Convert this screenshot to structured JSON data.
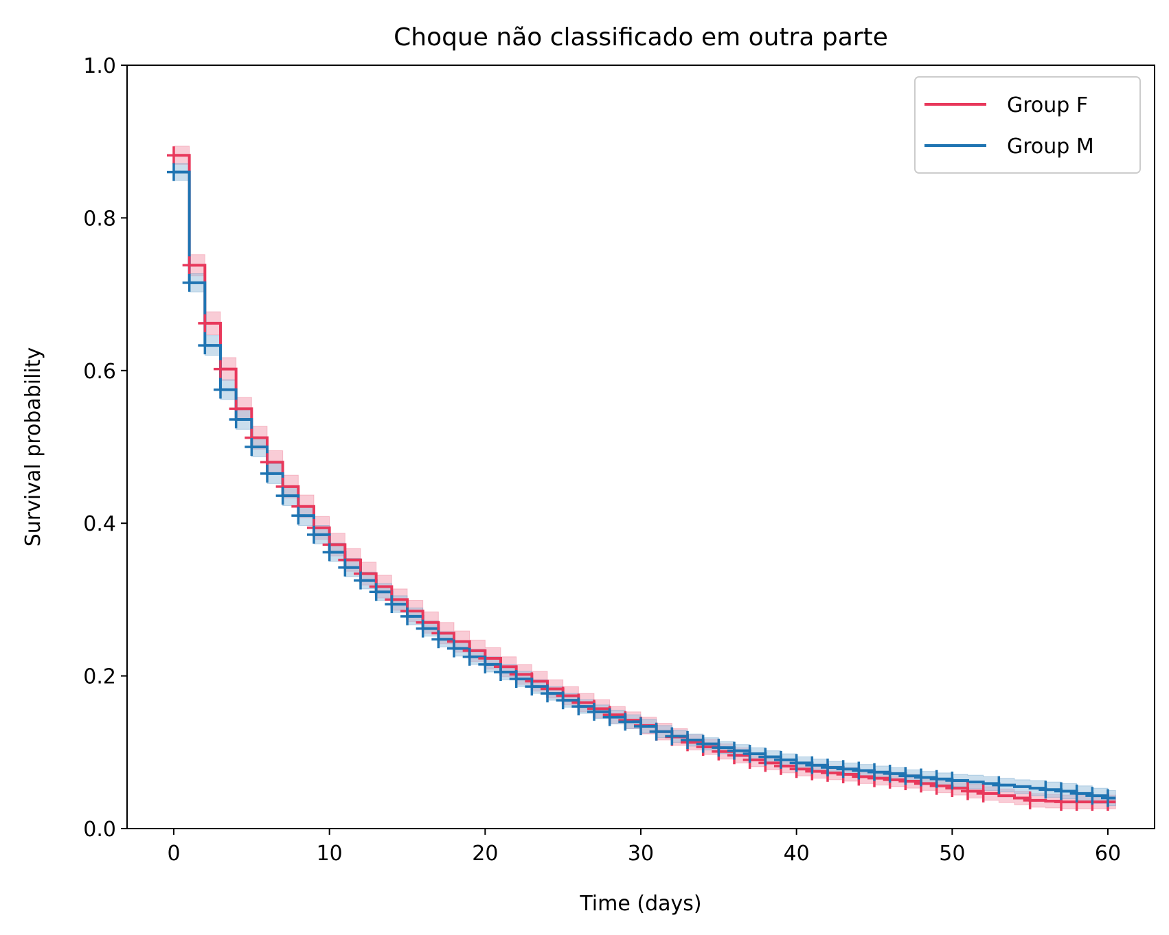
{
  "chart_data": {
    "type": "line",
    "subtype": "kaplan-meier step",
    "title": "Choque não classificado em outra parte",
    "xlabel": "Time (days)",
    "ylabel": "Survival probability",
    "xlim": [
      -3,
      63
    ],
    "ylim": [
      0.0,
      1.0
    ],
    "xticks": [
      0,
      10,
      20,
      30,
      40,
      50,
      60
    ],
    "xtick_labels": [
      "0",
      "10",
      "20",
      "30",
      "40",
      "50",
      "60"
    ],
    "yticks": [
      0.0,
      0.2,
      0.4,
      0.6,
      0.8,
      1.0
    ],
    "ytick_labels": [
      "0.0",
      "0.2",
      "0.4",
      "0.6",
      "0.8",
      "1.0"
    ],
    "grid": false,
    "legend_position": "top-right",
    "series": [
      {
        "name": "Group F",
        "color": "#e8385b",
        "band_color": "#f4a3b5",
        "x": [
          0,
          1,
          2,
          3,
          4,
          5,
          6,
          7,
          8,
          9,
          10,
          11,
          12,
          13,
          14,
          15,
          16,
          17,
          18,
          19,
          20,
          21,
          22,
          23,
          24,
          25,
          26,
          27,
          28,
          29,
          30,
          31,
          32,
          33,
          34,
          35,
          36,
          37,
          38,
          39,
          40,
          41,
          42,
          43,
          44,
          45,
          46,
          47,
          48,
          49,
          50,
          51,
          52,
          53,
          54,
          55,
          56,
          57,
          58,
          59,
          60,
          60.5
        ],
        "y": [
          0.882,
          0.738,
          0.662,
          0.602,
          0.55,
          0.512,
          0.48,
          0.448,
          0.422,
          0.394,
          0.372,
          0.352,
          0.334,
          0.317,
          0.3,
          0.285,
          0.27,
          0.256,
          0.245,
          0.233,
          0.223,
          0.212,
          0.202,
          0.193,
          0.183,
          0.174,
          0.165,
          0.157,
          0.149,
          0.142,
          0.135,
          0.127,
          0.12,
          0.113,
          0.107,
          0.101,
          0.096,
          0.09,
          0.086,
          0.082,
          0.078,
          0.075,
          0.073,
          0.071,
          0.068,
          0.066,
          0.064,
          0.062,
          0.059,
          0.056,
          0.053,
          0.049,
          0.046,
          0.043,
          0.04,
          0.037,
          0.036,
          0.035,
          0.035,
          0.035,
          0.035,
          0.035
        ],
        "ci_lower": [
          0.87,
          0.724,
          0.647,
          0.587,
          0.535,
          0.497,
          0.465,
          0.433,
          0.407,
          0.379,
          0.357,
          0.337,
          0.319,
          0.302,
          0.286,
          0.271,
          0.256,
          0.242,
          0.231,
          0.219,
          0.209,
          0.199,
          0.189,
          0.18,
          0.171,
          0.162,
          0.153,
          0.145,
          0.138,
          0.131,
          0.124,
          0.116,
          0.109,
          0.103,
          0.097,
          0.091,
          0.086,
          0.081,
          0.077,
          0.073,
          0.069,
          0.066,
          0.064,
          0.062,
          0.059,
          0.057,
          0.055,
          0.053,
          0.05,
          0.047,
          0.044,
          0.04,
          0.037,
          0.034,
          0.031,
          0.028,
          0.027,
          0.026,
          0.026,
          0.026,
          0.026,
          0.026
        ],
        "ci_upper": [
          0.894,
          0.752,
          0.677,
          0.617,
          0.565,
          0.527,
          0.495,
          0.463,
          0.437,
          0.409,
          0.387,
          0.367,
          0.349,
          0.332,
          0.314,
          0.299,
          0.284,
          0.27,
          0.259,
          0.247,
          0.237,
          0.225,
          0.215,
          0.206,
          0.195,
          0.186,
          0.177,
          0.169,
          0.16,
          0.153,
          0.146,
          0.138,
          0.131,
          0.123,
          0.117,
          0.111,
          0.106,
          0.099,
          0.095,
          0.091,
          0.087,
          0.084,
          0.082,
          0.08,
          0.077,
          0.075,
          0.073,
          0.071,
          0.068,
          0.065,
          0.062,
          0.058,
          0.055,
          0.052,
          0.049,
          0.046,
          0.045,
          0.044,
          0.044,
          0.044,
          0.044,
          0.044
        ],
        "censor_x": [
          0,
          1,
          2,
          3,
          4,
          5,
          6,
          7,
          8,
          9,
          10,
          11,
          12,
          13,
          14,
          15,
          16,
          17,
          18,
          19,
          20,
          21,
          22,
          23,
          24,
          25,
          26,
          27,
          28,
          29,
          30,
          31,
          32,
          33,
          34,
          35,
          36,
          37,
          38,
          39,
          40,
          41,
          42,
          43,
          44,
          45,
          46,
          47,
          48,
          49,
          50,
          51,
          52,
          55,
          57,
          58,
          59,
          60
        ],
        "censor_y": [
          0.882,
          0.738,
          0.662,
          0.602,
          0.55,
          0.512,
          0.48,
          0.448,
          0.422,
          0.394,
          0.372,
          0.352,
          0.334,
          0.317,
          0.3,
          0.285,
          0.27,
          0.256,
          0.245,
          0.233,
          0.223,
          0.212,
          0.202,
          0.193,
          0.183,
          0.174,
          0.165,
          0.157,
          0.149,
          0.142,
          0.135,
          0.127,
          0.12,
          0.113,
          0.107,
          0.101,
          0.096,
          0.09,
          0.086,
          0.082,
          0.078,
          0.075,
          0.073,
          0.071,
          0.068,
          0.066,
          0.064,
          0.062,
          0.059,
          0.056,
          0.053,
          0.049,
          0.046,
          0.037,
          0.035,
          0.035,
          0.035,
          0.035
        ]
      },
      {
        "name": "Group M",
        "color": "#1f74b2",
        "band_color": "#9fc3df",
        "x": [
          0,
          1,
          2,
          3,
          4,
          5,
          6,
          7,
          8,
          9,
          10,
          11,
          12,
          13,
          14,
          15,
          16,
          17,
          18,
          19,
          20,
          21,
          22,
          23,
          24,
          25,
          26,
          27,
          28,
          29,
          30,
          31,
          32,
          33,
          34,
          35,
          36,
          37,
          38,
          39,
          40,
          41,
          42,
          43,
          44,
          45,
          46,
          47,
          48,
          49,
          50,
          51,
          52,
          53,
          54,
          55,
          56,
          57,
          58,
          59,
          60,
          60.5
        ],
        "y": [
          0.86,
          0.715,
          0.633,
          0.575,
          0.536,
          0.5,
          0.465,
          0.436,
          0.41,
          0.385,
          0.362,
          0.342,
          0.325,
          0.31,
          0.294,
          0.278,
          0.262,
          0.248,
          0.236,
          0.225,
          0.215,
          0.205,
          0.196,
          0.186,
          0.177,
          0.168,
          0.16,
          0.153,
          0.146,
          0.14,
          0.134,
          0.127,
          0.121,
          0.116,
          0.111,
          0.106,
          0.102,
          0.098,
          0.094,
          0.09,
          0.086,
          0.083,
          0.08,
          0.078,
          0.076,
          0.074,
          0.072,
          0.069,
          0.067,
          0.065,
          0.063,
          0.061,
          0.059,
          0.057,
          0.055,
          0.053,
          0.051,
          0.049,
          0.046,
          0.043,
          0.04,
          0.04
        ],
        "ci_lower": [
          0.849,
          0.703,
          0.62,
          0.562,
          0.523,
          0.487,
          0.452,
          0.423,
          0.397,
          0.373,
          0.35,
          0.33,
          0.314,
          0.299,
          0.283,
          0.267,
          0.252,
          0.238,
          0.226,
          0.215,
          0.205,
          0.195,
          0.186,
          0.177,
          0.168,
          0.159,
          0.151,
          0.144,
          0.137,
          0.131,
          0.125,
          0.119,
          0.113,
          0.108,
          0.103,
          0.098,
          0.094,
          0.09,
          0.086,
          0.082,
          0.078,
          0.075,
          0.072,
          0.07,
          0.068,
          0.066,
          0.064,
          0.061,
          0.059,
          0.057,
          0.055,
          0.052,
          0.05,
          0.048,
          0.046,
          0.043,
          0.041,
          0.039,
          0.036,
          0.033,
          0.03,
          0.03
        ],
        "ci_upper": [
          0.871,
          0.727,
          0.646,
          0.588,
          0.549,
          0.513,
          0.478,
          0.449,
          0.423,
          0.397,
          0.374,
          0.354,
          0.336,
          0.321,
          0.305,
          0.289,
          0.272,
          0.258,
          0.246,
          0.235,
          0.225,
          0.215,
          0.206,
          0.195,
          0.186,
          0.177,
          0.169,
          0.162,
          0.155,
          0.149,
          0.143,
          0.135,
          0.129,
          0.124,
          0.119,
          0.114,
          0.11,
          0.106,
          0.102,
          0.098,
          0.094,
          0.091,
          0.088,
          0.086,
          0.084,
          0.082,
          0.08,
          0.077,
          0.075,
          0.073,
          0.071,
          0.07,
          0.068,
          0.066,
          0.064,
          0.063,
          0.061,
          0.059,
          0.056,
          0.053,
          0.05,
          0.05
        ],
        "censor_x": [
          0,
          1,
          2,
          3,
          4,
          5,
          6,
          7,
          8,
          9,
          10,
          11,
          12,
          13,
          14,
          15,
          16,
          17,
          18,
          19,
          20,
          21,
          22,
          23,
          24,
          25,
          26,
          27,
          28,
          29,
          30,
          31,
          32,
          33,
          34,
          35,
          36,
          37,
          38,
          39,
          40,
          41,
          42,
          43,
          44,
          45,
          46,
          47,
          48,
          49,
          50,
          53,
          56,
          57,
          58,
          59,
          60
        ],
        "censor_y": [
          0.86,
          0.715,
          0.633,
          0.575,
          0.536,
          0.5,
          0.465,
          0.436,
          0.41,
          0.385,
          0.362,
          0.342,
          0.325,
          0.31,
          0.294,
          0.278,
          0.262,
          0.248,
          0.236,
          0.225,
          0.215,
          0.205,
          0.196,
          0.186,
          0.177,
          0.168,
          0.16,
          0.153,
          0.146,
          0.14,
          0.134,
          0.127,
          0.121,
          0.116,
          0.111,
          0.106,
          0.102,
          0.098,
          0.094,
          0.09,
          0.086,
          0.083,
          0.08,
          0.078,
          0.076,
          0.074,
          0.072,
          0.069,
          0.067,
          0.065,
          0.063,
          0.057,
          0.051,
          0.049,
          0.046,
          0.043,
          0.04
        ]
      }
    ]
  }
}
